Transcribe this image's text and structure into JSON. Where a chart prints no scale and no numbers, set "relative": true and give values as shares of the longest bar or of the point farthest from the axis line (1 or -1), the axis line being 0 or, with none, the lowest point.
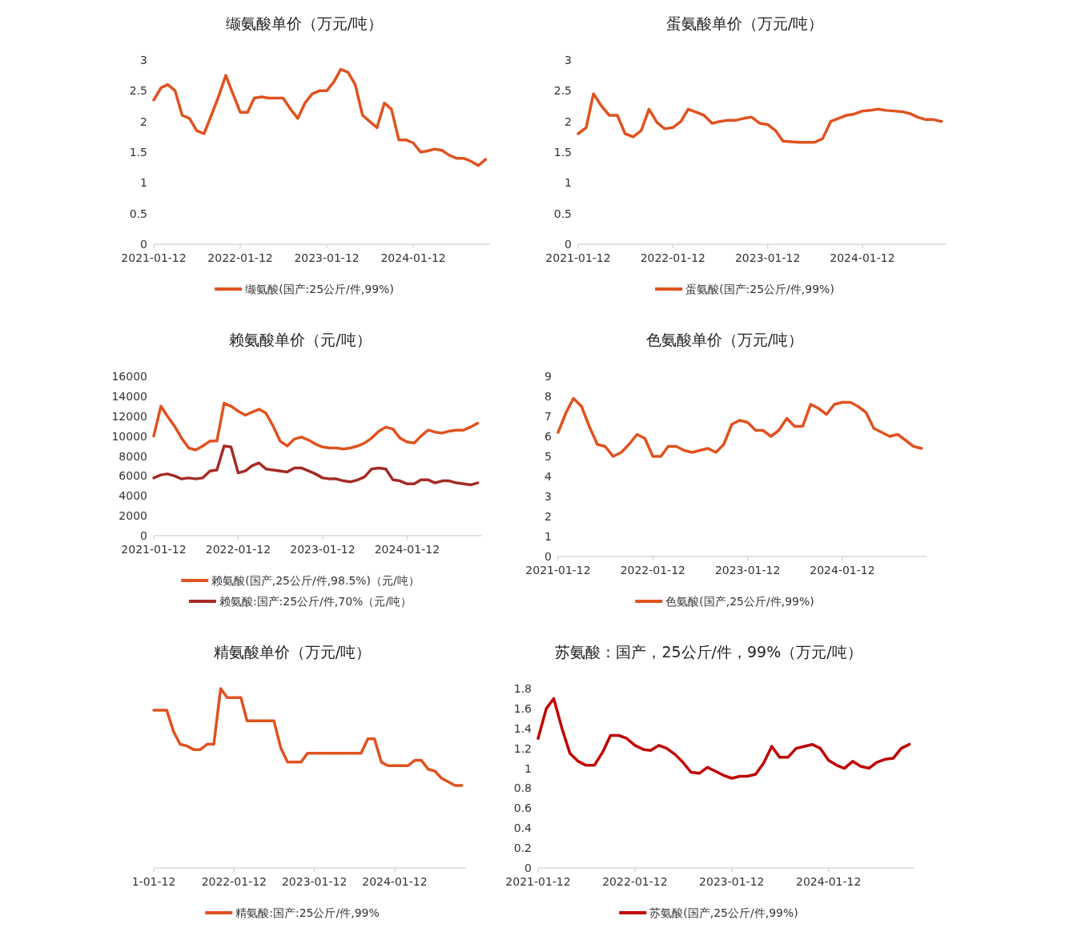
{
  "chart_data": [
    {
      "type": "line",
      "title": "缬氨酸单价（万元/吨）",
      "legend": "bottom",
      "grid": false,
      "marker": "none",
      "line_style": "solid",
      "xlim": [
        "2021-01-12",
        "2024-12-01"
      ],
      "xticks": [
        "2021-01-12",
        "2022-01-12",
        "2023-01-12",
        "2024-01-12"
      ],
      "ylim": [
        0,
        3
      ],
      "yticks": [
        0,
        0.5,
        1,
        1.5,
        2,
        2.5,
        3
      ],
      "x": [
        "2021-01-12",
        "2021-02-12",
        "2021-03-12",
        "2021-04-12",
        "2021-05-12",
        "2021-06-12",
        "2021-07-12",
        "2021-08-12",
        "2021-09-12",
        "2021-10-12",
        "2021-11-12",
        "2021-12-12",
        "2022-01-12",
        "2022-02-12",
        "2022-03-12",
        "2022-04-12",
        "2022-05-12",
        "2022-06-12",
        "2022-07-12",
        "2022-08-12",
        "2022-09-12",
        "2022-10-12",
        "2022-11-12",
        "2022-12-12",
        "2023-01-12",
        "2023-02-12",
        "2023-03-12",
        "2023-04-12",
        "2023-05-12",
        "2023-06-12",
        "2023-07-12",
        "2023-08-12",
        "2023-09-12",
        "2023-10-12",
        "2023-11-12",
        "2023-12-12",
        "2024-01-12",
        "2024-02-12",
        "2024-03-12",
        "2024-04-12",
        "2024-05-12",
        "2024-06-12",
        "2024-07-12",
        "2024-08-12",
        "2024-09-12",
        "2024-10-12",
        "2024-11-12"
      ],
      "series": [
        {
          "name": "缬氨酸(国产:25公斤/件,99%)",
          "color": "#e0521f",
          "values": [
            2.35,
            2.55,
            2.6,
            2.5,
            2.1,
            2.05,
            1.85,
            1.8,
            2.1,
            2.4,
            2.75,
            2.45,
            2.15,
            2.15,
            2.38,
            2.4,
            2.38,
            2.38,
            2.38,
            2.2,
            2.05,
            2.3,
            2.45,
            2.5,
            2.5,
            2.65,
            2.85,
            2.8,
            2.6,
            2.1,
            2.0,
            1.9,
            2.3,
            2.2,
            1.7,
            1.7,
            1.65,
            1.5,
            1.52,
            1.55,
            1.53,
            1.45,
            1.4,
            1.4,
            1.35,
            1.28,
            1.38
          ]
        }
      ]
    },
    {
      "type": "line",
      "title": "蛋氨酸单价（万元/吨）",
      "legend": "bottom",
      "grid": false,
      "marker": "none",
      "line_style": "solid",
      "xlim": [
        "2021-01-12",
        "2024-12-01"
      ],
      "xticks": [
        "2021-01-12",
        "2022-01-12",
        "2023-01-12",
        "2024-01-12"
      ],
      "ylim": [
        0,
        3
      ],
      "yticks": [
        0,
        0.5,
        1,
        1.5,
        2,
        2.5,
        3
      ],
      "x": [
        "2021-01-12",
        "2021-02-12",
        "2021-03-12",
        "2021-04-12",
        "2021-05-12",
        "2021-06-12",
        "2021-07-12",
        "2021-08-12",
        "2021-09-12",
        "2021-10-12",
        "2021-11-12",
        "2021-12-12",
        "2022-01-12",
        "2022-02-12",
        "2022-03-12",
        "2022-04-12",
        "2022-05-12",
        "2022-06-12",
        "2022-07-12",
        "2022-08-12",
        "2022-09-12",
        "2022-10-12",
        "2022-11-12",
        "2022-12-12",
        "2023-01-12",
        "2023-02-12",
        "2023-03-12",
        "2023-04-12",
        "2023-05-12",
        "2023-06-12",
        "2023-07-12",
        "2023-08-12",
        "2023-09-12",
        "2023-10-12",
        "2023-11-12",
        "2023-12-12",
        "2024-01-12",
        "2024-02-12",
        "2024-03-12",
        "2024-04-12",
        "2024-05-12",
        "2024-06-12",
        "2024-07-12",
        "2024-08-12",
        "2024-09-12",
        "2024-10-12",
        "2024-11-12"
      ],
      "series": [
        {
          "name": "蛋氨酸(国产:25公斤/件,99%)",
          "color": "#e0521f",
          "values": [
            1.8,
            1.9,
            2.45,
            2.25,
            2.1,
            2.1,
            1.8,
            1.75,
            1.85,
            2.2,
            1.98,
            1.88,
            1.9,
            2.0,
            2.2,
            2.15,
            2.1,
            1.97,
            2.0,
            2.02,
            2.02,
            2.05,
            2.07,
            1.97,
            1.95,
            1.85,
            1.68,
            1.67,
            1.66,
            1.66,
            1.66,
            1.72,
            2.0,
            2.05,
            2.1,
            2.12,
            2.17,
            2.18,
            2.2,
            2.18,
            2.17,
            2.16,
            2.13,
            2.07,
            2.03,
            2.03,
            2.0
          ]
        }
      ]
    },
    {
      "type": "line",
      "title": "赖氨酸单价（元/吨）",
      "legend": "bottom",
      "grid": false,
      "marker": "none",
      "line_style": "solid",
      "xlim": [
        "2021-01-12",
        "2024-12-01"
      ],
      "xticks": [
        "2021-01-12",
        "2022-01-12",
        "2023-01-12",
        "2024-01-12"
      ],
      "ylim": [
        0,
        16000
      ],
      "yticks": [
        0,
        2000,
        4000,
        6000,
        8000,
        10000,
        12000,
        14000,
        16000
      ],
      "x": [
        "2021-01-12",
        "2021-02-12",
        "2021-03-12",
        "2021-04-12",
        "2021-05-12",
        "2021-06-12",
        "2021-07-12",
        "2021-08-12",
        "2021-09-12",
        "2021-10-12",
        "2021-11-12",
        "2021-12-12",
        "2022-01-12",
        "2022-02-12",
        "2022-03-12",
        "2022-04-12",
        "2022-05-12",
        "2022-06-12",
        "2022-07-12",
        "2022-08-12",
        "2022-09-12",
        "2022-10-12",
        "2022-11-12",
        "2022-12-12",
        "2023-01-12",
        "2023-02-12",
        "2023-03-12",
        "2023-04-12",
        "2023-05-12",
        "2023-06-12",
        "2023-07-12",
        "2023-08-12",
        "2023-09-12",
        "2023-10-12",
        "2023-11-12",
        "2023-12-12",
        "2024-01-12",
        "2024-02-12",
        "2024-03-12",
        "2024-04-12",
        "2024-05-12",
        "2024-06-12",
        "2024-07-12",
        "2024-08-12",
        "2024-09-12",
        "2024-10-12",
        "2024-11-12"
      ],
      "series": [
        {
          "name": "赖氨酸(国产,25公斤/件,98.5%)（元/吨）",
          "color": "#e0521f",
          "values": [
            10000,
            13000,
            12000,
            11000,
            9800,
            8800,
            8600,
            9000,
            9500,
            9500,
            13300,
            13000,
            12500,
            12100,
            12400,
            12700,
            12300,
            11000,
            9500,
            9000,
            9700,
            9900,
            9600,
            9200,
            8900,
            8800,
            8800,
            8700,
            8800,
            9000,
            9300,
            9800,
            10500,
            10900,
            10700,
            9800,
            9400,
            9300,
            10000,
            10600,
            10400,
            10300,
            10500,
            10600,
            10600,
            10900,
            11300
          ]
        },
        {
          "name": "赖氨酸:国产:25公斤/件,70%（元/吨）",
          "color": "#a52a24",
          "values": [
            5800,
            6100,
            6200,
            6000,
            5700,
            5800,
            5700,
            5800,
            6500,
            6600,
            9000,
            8900,
            6300,
            6500,
            7000,
            7300,
            6700,
            6600,
            6500,
            6400,
            6800,
            6800,
            6500,
            6200,
            5800,
            5700,
            5700,
            5500,
            5400,
            5600,
            5900,
            6700,
            6800,
            6700,
            5600,
            5500,
            5200,
            5200,
            5600,
            5600,
            5300,
            5500,
            5500,
            5300,
            5200,
            5100,
            5300
          ]
        }
      ]
    },
    {
      "type": "line",
      "title": "色氨酸单价（万元/吨）",
      "legend": "bottom",
      "grid": false,
      "marker": "none",
      "line_style": "solid",
      "xlim": [
        "2021-01-12",
        "2024-12-01"
      ],
      "xticks": [
        "2021-01-12",
        "2022-01-12",
        "2023-01-12",
        "2024-01-12"
      ],
      "ylim": [
        0,
        9
      ],
      "yticks": [
        0,
        1,
        2,
        3,
        4,
        5,
        6,
        7,
        8,
        9
      ],
      "x": [
        "2021-01-12",
        "2021-02-12",
        "2021-03-12",
        "2021-04-12",
        "2021-05-12",
        "2021-06-12",
        "2021-07-12",
        "2021-08-12",
        "2021-09-12",
        "2021-10-12",
        "2021-11-12",
        "2021-12-12",
        "2022-01-12",
        "2022-02-12",
        "2022-03-12",
        "2022-04-12",
        "2022-05-12",
        "2022-06-12",
        "2022-07-12",
        "2022-08-12",
        "2022-09-12",
        "2022-10-12",
        "2022-11-12",
        "2022-12-12",
        "2023-01-12",
        "2023-02-12",
        "2023-03-12",
        "2023-04-12",
        "2023-05-12",
        "2023-06-12",
        "2023-07-12",
        "2023-08-12",
        "2023-09-12",
        "2023-10-12",
        "2023-11-12",
        "2023-12-12",
        "2024-01-12",
        "2024-02-12",
        "2024-03-12",
        "2024-04-12",
        "2024-05-12",
        "2024-06-12",
        "2024-07-12",
        "2024-08-12",
        "2024-09-12",
        "2024-10-12",
        "2024-11-12"
      ],
      "series": [
        {
          "name": "色氨酸(国产,25公斤/件,99%)",
          "color": "#e0521f",
          "values": [
            6.2,
            7.2,
            7.9,
            7.5,
            6.5,
            5.6,
            5.5,
            5.0,
            5.2,
            5.6,
            6.1,
            5.9,
            5.0,
            5.0,
            5.5,
            5.5,
            5.3,
            5.2,
            5.3,
            5.4,
            5.2,
            5.6,
            6.6,
            6.8,
            6.7,
            6.3,
            6.3,
            6.0,
            6.3,
            6.9,
            6.5,
            6.5,
            7.6,
            7.4,
            7.1,
            7.6,
            7.7,
            7.7,
            7.5,
            7.2,
            6.4,
            6.2,
            6.0,
            6.1,
            5.8,
            5.5,
            5.4
          ]
        }
      ]
    },
    {
      "type": "line",
      "title": "精氨酸单价（万元/吨）",
      "relative": true,
      "legend": "bottom",
      "grid": false,
      "marker": "none",
      "line_style": "solid",
      "xlim": [
        "2021-01-12",
        "2024-12-01"
      ],
      "xticks": [
        {
          "value": "2021-01-12",
          "label": "1-01-12"
        },
        "2022-01-12",
        "2023-01-12",
        "2024-01-12"
      ],
      "x": [
        "2021-01-12",
        "2021-02-12",
        "2021-03-12",
        "2021-04-12",
        "2021-05-12",
        "2021-06-12",
        "2021-07-12",
        "2021-08-12",
        "2021-09-12",
        "2021-10-12",
        "2021-11-12",
        "2021-12-12",
        "2022-01-12",
        "2022-02-12",
        "2022-03-12",
        "2022-04-12",
        "2022-05-12",
        "2022-06-12",
        "2022-07-12",
        "2022-08-12",
        "2022-09-12",
        "2022-10-12",
        "2022-11-12",
        "2022-12-12",
        "2023-01-12",
        "2023-02-12",
        "2023-03-12",
        "2023-04-12",
        "2023-05-12",
        "2023-06-12",
        "2023-07-12",
        "2023-08-12",
        "2023-09-12",
        "2023-10-12",
        "2023-11-12",
        "2023-12-12",
        "2024-01-12",
        "2024-02-12",
        "2024-03-12",
        "2024-04-12",
        "2024-05-12",
        "2024-06-12",
        "2024-07-12",
        "2024-08-12",
        "2024-09-12",
        "2024-10-12",
        "2024-11-12"
      ],
      "series": [
        {
          "name": "精氨酸:国产:25公斤/件,99%",
          "color": "#e0521f",
          "values": [
            0.88,
            0.88,
            0.88,
            0.76,
            0.69,
            0.68,
            0.66,
            0.66,
            0.69,
            0.69,
            1,
            0.95,
            0.95,
            0.95,
            0.82,
            0.82,
            0.82,
            0.82,
            0.82,
            0.67,
            0.59,
            0.59,
            0.59,
            0.64,
            0.64,
            0.64,
            0.64,
            0.64,
            0.64,
            0.64,
            0.64,
            0.64,
            0.72,
            0.72,
            0.59,
            0.57,
            0.57,
            0.57,
            0.57,
            0.6,
            0.6,
            0.55,
            0.54,
            0.5,
            0.48,
            0.46,
            0.46
          ]
        }
      ]
    },
    {
      "type": "line",
      "title": "苏氨酸：国产，25公斤/件，99%（万元/吨）",
      "legend": "bottom",
      "grid": false,
      "marker": "none",
      "line_style": "solid",
      "xlim": [
        "2021-01-12",
        "2024-12-01"
      ],
      "xticks": [
        "2021-01-12",
        "2022-01-12",
        "2023-01-12",
        "2024-01-12"
      ],
      "ylim": [
        0,
        1.8
      ],
      "yticks": [
        0,
        0.2,
        0.4,
        0.6,
        0.8,
        1,
        1.2,
        1.4,
        1.6,
        1.8
      ],
      "x": [
        "2021-01-12",
        "2021-02-12",
        "2021-03-12",
        "2021-04-12",
        "2021-05-12",
        "2021-06-12",
        "2021-07-12",
        "2021-08-12",
        "2021-09-12",
        "2021-10-12",
        "2021-11-12",
        "2021-12-12",
        "2022-01-12",
        "2022-02-12",
        "2022-03-12",
        "2022-04-12",
        "2022-05-12",
        "2022-06-12",
        "2022-07-12",
        "2022-08-12",
        "2022-09-12",
        "2022-10-12",
        "2022-11-12",
        "2022-12-12",
        "2023-01-12",
        "2023-02-12",
        "2023-03-12",
        "2023-04-12",
        "2023-05-12",
        "2023-06-12",
        "2023-07-12",
        "2023-08-12",
        "2023-09-12",
        "2023-10-12",
        "2023-11-12",
        "2023-12-12",
        "2024-01-12",
        "2024-02-12",
        "2024-03-12",
        "2024-04-12",
        "2024-05-12",
        "2024-06-12",
        "2024-07-12",
        "2024-08-12",
        "2024-09-12",
        "2024-10-12",
        "2024-11-12"
      ],
      "series": [
        {
          "name": "苏氨酸(国产,25公斤/件,99%)",
          "color": "#c00000",
          "values": [
            1.3,
            1.6,
            1.7,
            1.4,
            1.15,
            1.07,
            1.03,
            1.03,
            1.16,
            1.33,
            1.33,
            1.3,
            1.23,
            1.19,
            1.18,
            1.23,
            1.2,
            1.14,
            1.06,
            0.96,
            0.95,
            1.01,
            0.97,
            0.93,
            0.9,
            0.92,
            0.92,
            0.94,
            1.05,
            1.22,
            1.11,
            1.11,
            1.2,
            1.22,
            1.24,
            1.2,
            1.08,
            1.03,
            1.0,
            1.07,
            1.02,
            1.0,
            1.06,
            1.09,
            1.1,
            1.2,
            1.24
          ]
        }
      ]
    }
  ]
}
